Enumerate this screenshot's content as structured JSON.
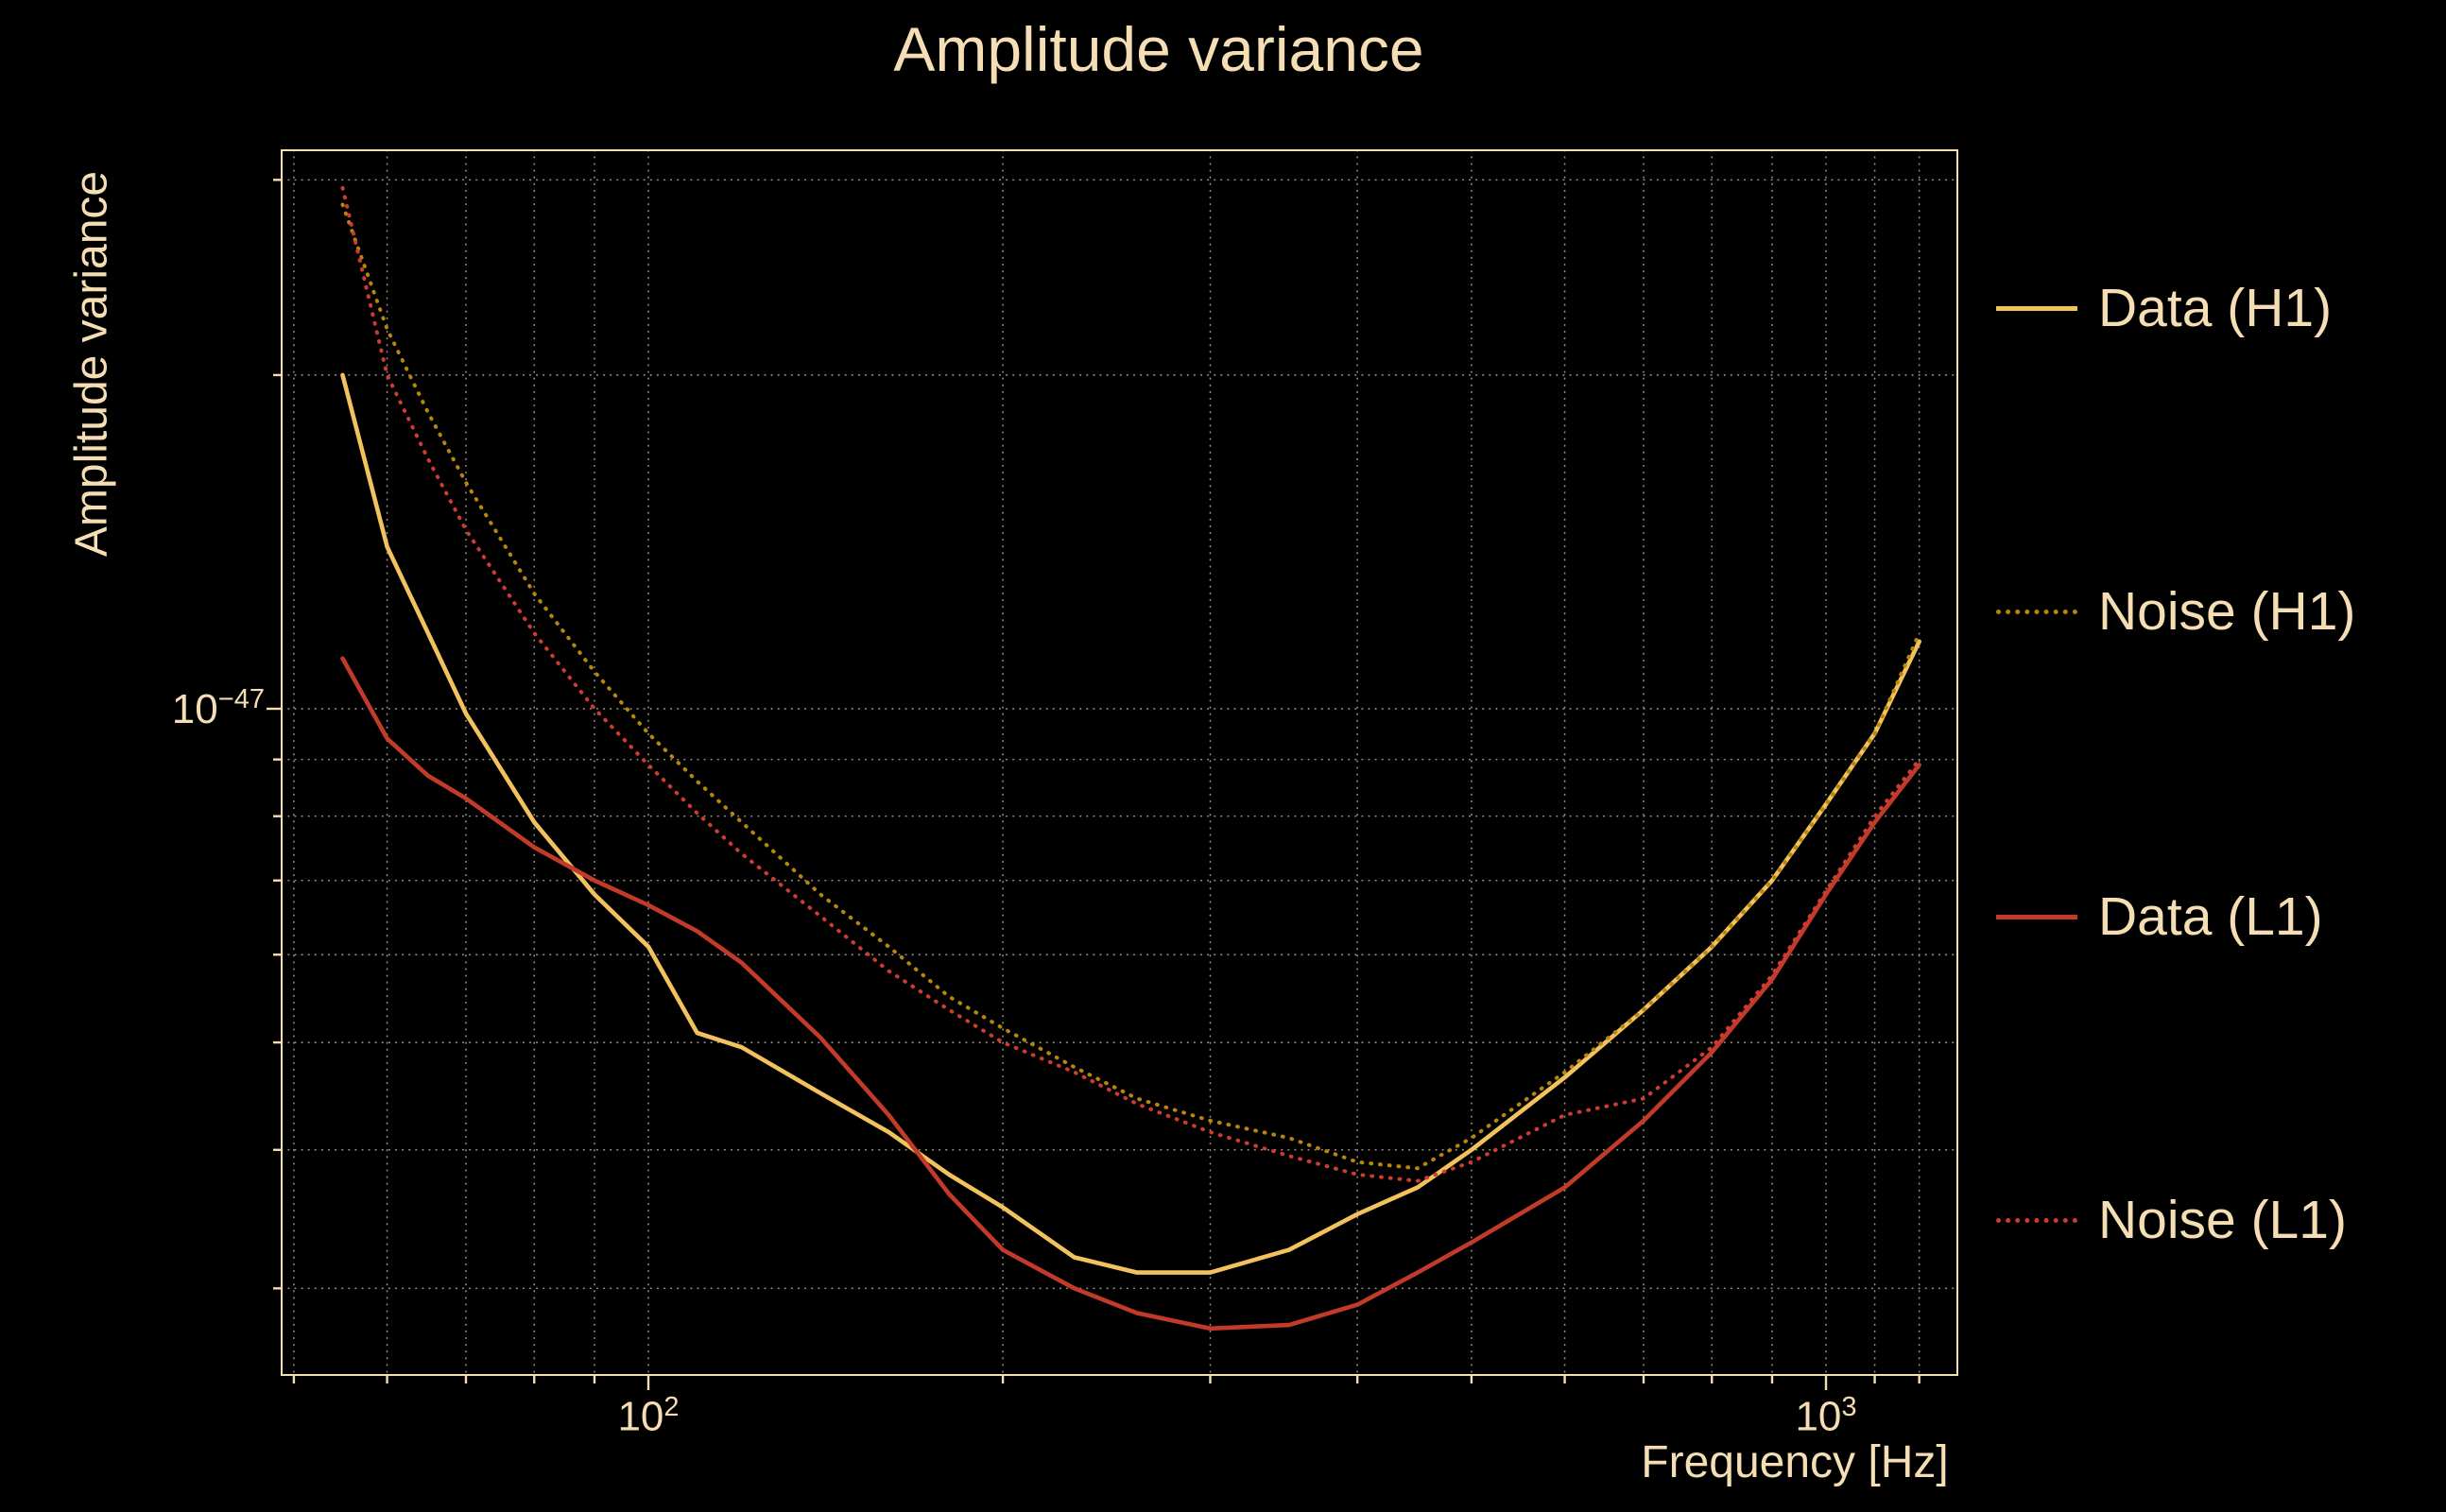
{
  "title": "Amplitude variance",
  "axes": {
    "x_label": "Frequency [Hz]",
    "y_label": "Amplitude variance",
    "x_tick_labels": [
      {
        "base": "10",
        "exp": "2"
      },
      {
        "base": "10",
        "exp": "3"
      }
    ],
    "y_tick_labels": [
      {
        "base": "10",
        "exp": "−47"
      }
    ]
  },
  "colors": {
    "background": "#000000",
    "text": "#f5deb3",
    "grid": "#efe5cc",
    "spine": "#f5deb3"
  },
  "chart_data": {
    "type": "line",
    "title": "Amplitude variance",
    "xlabel": "Frequency [Hz]",
    "ylabel": "Amplitude variance",
    "x_scale": "log",
    "y_scale": "log",
    "xlim": [
      49,
      1300
    ],
    "ylim": [
      2.5e-48,
      3.2e-47
    ],
    "grid": "both, dotted",
    "legend_position": "outside right",
    "x_ticks_major": [
      100,
      1000
    ],
    "x_ticks_minor": [
      50,
      60,
      70,
      80,
      90,
      200,
      300,
      400,
      500,
      600,
      700,
      800,
      900,
      1100,
      1200
    ],
    "y_ticks_major": [
      1e-47
    ],
    "y_ticks_minor": [
      3e-48,
      4e-48,
      5e-48,
      6e-48,
      7e-48,
      8e-48,
      9e-48,
      2e-47,
      3e-47
    ],
    "x": [
      55,
      60,
      65,
      70,
      80,
      90,
      100,
      110,
      120,
      140,
      160,
      180,
      200,
      230,
      260,
      300,
      350,
      400,
      450,
      500,
      600,
      700,
      800,
      900,
      1000,
      1100,
      1200
    ],
    "series": [
      {
        "name": "Data (H1)",
        "color": "#f2c25e",
        "line_style": "solid",
        "values": [
          2e-47,
          1.4e-47,
          1.17e-47,
          9.9e-48,
          7.9e-48,
          6.8e-48,
          6.1e-48,
          5.1e-48,
          4.95e-48,
          4.5e-48,
          4.15e-48,
          3.8e-48,
          3.55e-48,
          3.2e-48,
          3.1e-48,
          3.1e-48,
          3.25e-48,
          3.5e-48,
          3.7e-48,
          4e-48,
          4.65e-48,
          5.35e-48,
          6.1e-48,
          7e-48,
          8.2e-48,
          9.5e-48,
          1.15e-47
        ]
      },
      {
        "name": "Noise (H1)",
        "color": "#b8860b",
        "line_style": "dotted",
        "values": [
          2.85e-47,
          2.2e-47,
          1.85e-47,
          1.6e-47,
          1.27e-47,
          1.08e-47,
          9.5e-48,
          8.6e-48,
          7.9e-48,
          6.8e-48,
          6.1e-48,
          5.5e-48,
          5.15e-48,
          4.75e-48,
          4.45e-48,
          4.25e-48,
          4.1e-48,
          3.9e-48,
          3.85e-48,
          4.1e-48,
          4.7e-48,
          5.35e-48,
          6.1e-48,
          7e-48,
          8.2e-48,
          9.5e-48,
          1.17e-47
        ]
      },
      {
        "name": "Data (L1)",
        "color": "#c23b2a",
        "line_style": "solid",
        "values": [
          1.11e-47,
          9.4e-48,
          8.7e-48,
          8.3e-48,
          7.5e-48,
          7e-48,
          6.65e-48,
          6.3e-48,
          5.9e-48,
          5.05e-48,
          4.3e-48,
          3.65e-48,
          3.25e-48,
          3e-48,
          2.85e-48,
          2.76e-48,
          2.78e-48,
          2.9e-48,
          3.1e-48,
          3.3e-48,
          3.7e-48,
          4.25e-48,
          4.9e-48,
          5.7e-48,
          6.8e-48,
          7.9e-48,
          8.9e-48
        ]
      },
      {
        "name": "Noise (L1)",
        "color": "#cd3b32",
        "line_style": "dotted",
        "values": [
          2.95e-47,
          2e-47,
          1.68e-47,
          1.45e-47,
          1.17e-47,
          1e-47,
          8.9e-48,
          8.05e-48,
          7.4e-48,
          6.5e-48,
          5.8e-48,
          5.35e-48,
          5e-48,
          4.7e-48,
          4.4e-48,
          4.15e-48,
          3.95e-48,
          3.8e-48,
          3.75e-48,
          3.9e-48,
          4.3e-48,
          4.45e-48,
          4.95e-48,
          5.75e-48,
          6.85e-48,
          8e-48,
          9e-48
        ]
      }
    ]
  }
}
